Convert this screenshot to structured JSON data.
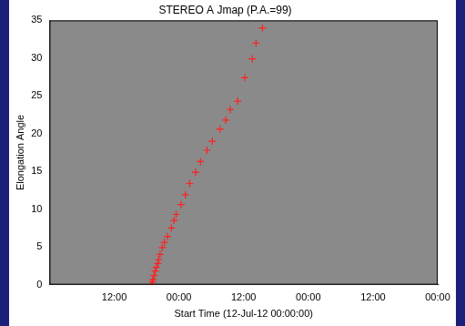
{
  "chart_data": {
    "type": "scatter",
    "title": "STEREO A Jmap (P.A.=99)",
    "x_label": "Start Time (12-Jul-12 00:00:00)",
    "y_label": "Elongation Angle",
    "xlim": [
      0,
      72
    ],
    "xticks": [
      {
        "value": 12,
        "label": "12:00"
      },
      {
        "value": 24,
        "label": "00:00"
      },
      {
        "value": 36,
        "label": "12:00"
      },
      {
        "value": 48,
        "label": "00:00"
      },
      {
        "value": 60,
        "label": "12:00"
      },
      {
        "value": 72,
        "label": "00:00"
      }
    ],
    "ylim": [
      0,
      35
    ],
    "yticks": [
      0,
      5,
      10,
      15,
      20,
      25,
      30,
      35
    ],
    "grid": false,
    "series": [
      {
        "color": "#ff2020",
        "marker": "cross",
        "x": [
          18.9,
          19.1,
          19.2,
          19.4,
          19.6,
          19.8,
          20.1,
          20.2,
          20.5,
          20.9,
          21.3,
          21.9,
          22.6,
          23.1,
          23.5,
          24.4,
          25.2,
          26.0,
          27.1,
          28.0,
          29.2,
          30.2,
          31.6,
          32.7,
          33.5,
          34.9,
          36.2,
          37.6,
          38.3,
          39.5
        ],
        "values": [
          0,
          0.4,
          0.7,
          1.2,
          1.8,
          2.3,
          2.8,
          3.3,
          4.0,
          4.9,
          5.6,
          6.4,
          7.5,
          8.5,
          9.3,
          10.6,
          11.9,
          13.4,
          14.9,
          16.3,
          17.8,
          19.0,
          20.6,
          21.8,
          23.2,
          24.3,
          27.4,
          29.9,
          32.0,
          34.0
        ]
      }
    ]
  }
}
